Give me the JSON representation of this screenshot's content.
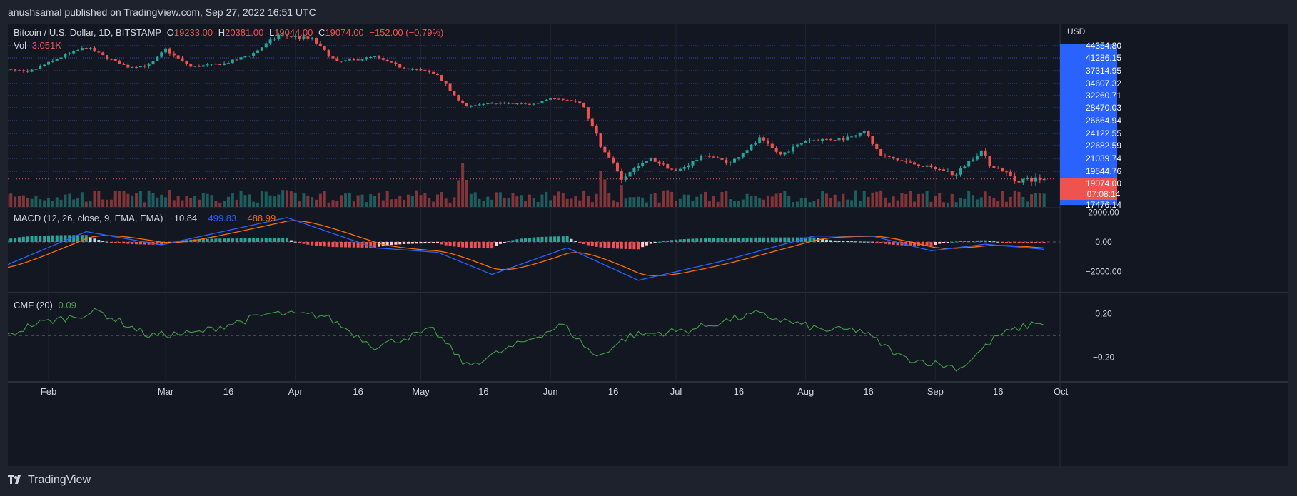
{
  "header": {
    "publisher": "anushsamal published on TradingView.com, Sep 27, 2022 16:51 UTC"
  },
  "legend": {
    "symbol": "Bitcoin / U.S. Dollar, 1D, BITSTAMP",
    "o_label": "O",
    "o_value": "19233.00",
    "h_label": "H",
    "h_value": "20381.00",
    "l_label": "L",
    "l_value": "19044.00",
    "c_label": "C",
    "c_value": "19074.00",
    "change": "−152.00 (−0.79%)",
    "vol_label": "Vol",
    "vol_value": "3.051K",
    "macd_label": "MACD (12, 26, close, 9, EMA, EMA)",
    "macd_hist": "−10.84",
    "macd_line": "−499.83",
    "macd_signal": "−488.99",
    "cmf_label": "CMF (20)",
    "cmf_value": "0.09"
  },
  "price_axis": {
    "currency": "USD",
    "levels": [
      "44354.80",
      "41286.15",
      "37314.95",
      "34607.32",
      "32260.71",
      "28470.03",
      "26664.94",
      "24122.55",
      "22682.59",
      "21039.74",
      "19544.76",
      "17476.14"
    ],
    "last_price": "19074.00",
    "countdown": "07:08:14"
  },
  "macd_axis": {
    "ticks": [
      "2000.00",
      "0.00",
      "−2000.00"
    ]
  },
  "cmf_axis": {
    "ticks": [
      "0.20",
      "−0.20"
    ]
  },
  "time_axis": {
    "labels": [
      "Feb",
      "Mar",
      "16",
      "Apr",
      "16",
      "May",
      "16",
      "Jun",
      "16",
      "Jul",
      "16",
      "Aug",
      "16",
      "Sep",
      "16",
      "Oct"
    ]
  },
  "colors": {
    "up": "#26a69a",
    "down": "#ef5350",
    "macd": "#2962ff",
    "signal": "#ff6d00",
    "cmf": "#43a047",
    "axis_highlight": "#2962ff"
  },
  "footer": {
    "brand": "TradingView"
  },
  "chart_data": {
    "type": "candlestick",
    "title": "Bitcoin / U.S. Dollar, 1D, BITSTAMP",
    "x_range": [
      "2022-01-20",
      "2022-09-27"
    ],
    "price_anchors": [
      [
        "2022-01-20",
        38000
      ],
      [
        "2022-01-27",
        36800
      ],
      [
        "2022-02-04",
        41500
      ],
      [
        "2022-02-10",
        44000
      ],
      [
        "2022-02-20",
        38500
      ],
      [
        "2022-02-25",
        39000
      ],
      [
        "2022-03-01",
        43500
      ],
      [
        "2022-03-07",
        38500
      ],
      [
        "2022-03-15",
        39500
      ],
      [
        "2022-03-22",
        42500
      ],
      [
        "2022-03-28",
        47000
      ],
      [
        "2022-04-05",
        46000
      ],
      [
        "2022-04-11",
        40000
      ],
      [
        "2022-04-20",
        41500
      ],
      [
        "2022-04-26",
        38500
      ],
      [
        "2022-05-05",
        36500
      ],
      [
        "2022-05-10",
        31000
      ],
      [
        "2022-05-12",
        29000
      ],
      [
        "2022-05-20",
        30000
      ],
      [
        "2022-05-28",
        29500
      ],
      [
        "2022-06-01",
        31500
      ],
      [
        "2022-06-08",
        30000
      ],
      [
        "2022-06-13",
        22500
      ],
      [
        "2022-06-18",
        19000
      ],
      [
        "2022-06-25",
        21000
      ],
      [
        "2022-07-01",
        19500
      ],
      [
        "2022-07-08",
        21500
      ],
      [
        "2022-07-14",
        20500
      ],
      [
        "2022-07-21",
        23500
      ],
      [
        "2022-07-26",
        21500
      ],
      [
        "2022-08-01",
        23300
      ],
      [
        "2022-08-10",
        23500
      ],
      [
        "2022-08-15",
        24500
      ],
      [
        "2022-08-19",
        21400
      ],
      [
        "2022-08-26",
        20500
      ],
      [
        "2022-09-06",
        19300
      ],
      [
        "2022-09-12",
        22000
      ],
      [
        "2022-09-14",
        20300
      ],
      [
        "2022-09-20",
        19000
      ],
      [
        "2022-09-27",
        19074
      ]
    ],
    "volume_spikes": [
      "2022-05-10",
      "2022-05-11",
      "2022-05-12",
      "2022-06-13",
      "2022-06-14",
      "2022-06-18"
    ],
    "macd_anchors": [
      [
        "2022-01-20",
        -1800
      ],
      [
        "2022-02-10",
        700
      ],
      [
        "2022-02-28",
        -200
      ],
      [
        "2022-03-30",
        1650
      ],
      [
        "2022-04-20",
        -400
      ],
      [
        "2022-05-05",
        -700
      ],
      [
        "2022-05-18",
        -2200
      ],
      [
        "2022-06-05",
        -400
      ],
      [
        "2022-06-22",
        -2600
      ],
      [
        "2022-07-12",
        -1300
      ],
      [
        "2022-08-03",
        400
      ],
      [
        "2022-08-17",
        400
      ],
      [
        "2022-08-31",
        -600
      ],
      [
        "2022-09-13",
        -150
      ],
      [
        "2022-09-27",
        -500
      ]
    ],
    "cmf_anchors": [
      [
        "2022-01-20",
        -0.05
      ],
      [
        "2022-01-28",
        0.1
      ],
      [
        "2022-02-13",
        0.22
      ],
      [
        "2022-02-25",
        0.0
      ],
      [
        "2022-03-08",
        0.02
      ],
      [
        "2022-03-26",
        0.2
      ],
      [
        "2022-04-08",
        0.18
      ],
      [
        "2022-04-20",
        -0.1
      ],
      [
        "2022-05-04",
        0.05
      ],
      [
        "2022-05-12",
        -0.28
      ],
      [
        "2022-05-22",
        -0.12
      ],
      [
        "2022-06-04",
        0.1
      ],
      [
        "2022-06-12",
        -0.2
      ],
      [
        "2022-06-20",
        0.0
      ],
      [
        "2022-07-04",
        0.05
      ],
      [
        "2022-07-20",
        0.2
      ],
      [
        "2022-08-05",
        0.05
      ],
      [
        "2022-08-14",
        0.05
      ],
      [
        "2022-08-24",
        -0.2
      ],
      [
        "2022-09-07",
        -0.3
      ],
      [
        "2022-09-16",
        0.0
      ],
      [
        "2022-09-26",
        0.13
      ],
      [
        "2022-09-27",
        0.09
      ]
    ],
    "cmf_zero_line": 0
  }
}
